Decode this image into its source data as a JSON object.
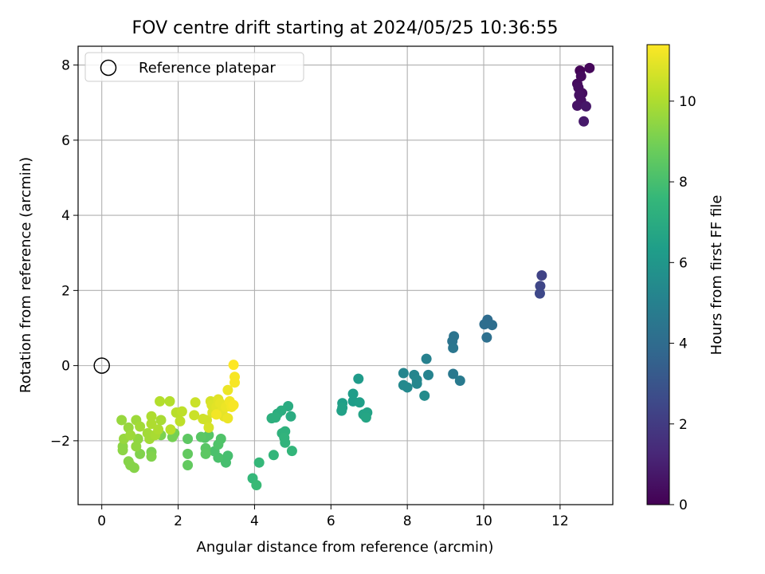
{
  "chart_data": {
    "type": "scatter",
    "title": "FOV centre drift starting at 2024/05/25 10:36:55",
    "xlabel": "Angular distance from reference (arcmin)",
    "ylabel": "Rotation from reference (arcmin)",
    "xlim": [
      -0.62,
      13.38
    ],
    "ylim": [
      -3.7,
      8.5
    ],
    "xticks": [
      0,
      2,
      4,
      6,
      8,
      10,
      12
    ],
    "yticks": [
      -2,
      0,
      2,
      4,
      6,
      8
    ],
    "grid": true,
    "legend": {
      "placement": "top-left",
      "entries": [
        "Reference platepar"
      ]
    },
    "reference_point": {
      "x": 0,
      "y": 0,
      "label": "Reference platepar"
    },
    "colorbar": {
      "label": "Hours from first FF file",
      "range": [
        0,
        11.4
      ],
      "ticks": [
        0,
        2,
        4,
        6,
        8,
        10
      ],
      "colormap": "viridis",
      "colormap_hex": [
        "#440154",
        "#482878",
        "#3e4989",
        "#31688e",
        "#26828e",
        "#1f9e89",
        "#35b779",
        "#6ece58",
        "#b5de2b",
        "#fde725"
      ]
    },
    "points": [
      {
        "x": 12.52,
        "y": 7.85,
        "c": 0.1
      },
      {
        "x": 12.77,
        "y": 7.92,
        "c": 0.2
      },
      {
        "x": 12.55,
        "y": 7.7,
        "c": 0.3
      },
      {
        "x": 12.45,
        "y": 7.5,
        "c": 0.3
      },
      {
        "x": 12.48,
        "y": 7.4,
        "c": 0.4
      },
      {
        "x": 12.58,
        "y": 7.25,
        "c": 0.4
      },
      {
        "x": 12.5,
        "y": 7.2,
        "c": 0.5
      },
      {
        "x": 12.55,
        "y": 7.05,
        "c": 0.5
      },
      {
        "x": 12.45,
        "y": 6.92,
        "c": 0.6
      },
      {
        "x": 12.68,
        "y": 6.9,
        "c": 0.7
      },
      {
        "x": 12.62,
        "y": 6.5,
        "c": 0.8
      },
      {
        "x": 11.52,
        "y": 2.4,
        "c": 2.3
      },
      {
        "x": 11.48,
        "y": 2.12,
        "c": 2.4
      },
      {
        "x": 11.47,
        "y": 1.92,
        "c": 2.5
      },
      {
        "x": 10.1,
        "y": 1.22,
        "c": 4.0
      },
      {
        "x": 10.02,
        "y": 1.1,
        "c": 4.1
      },
      {
        "x": 10.22,
        "y": 1.08,
        "c": 4.1
      },
      {
        "x": 10.08,
        "y": 0.75,
        "c": 4.2
      },
      {
        "x": 9.22,
        "y": 0.78,
        "c": 4.4
      },
      {
        "x": 9.18,
        "y": 0.65,
        "c": 4.4
      },
      {
        "x": 9.2,
        "y": 0.47,
        "c": 4.5
      },
      {
        "x": 9.2,
        "y": -0.22,
        "c": 4.6
      },
      {
        "x": 9.38,
        "y": -0.4,
        "c": 4.7
      },
      {
        "x": 8.5,
        "y": 0.18,
        "c": 5.0
      },
      {
        "x": 8.55,
        "y": -0.25,
        "c": 5.1
      },
      {
        "x": 7.9,
        "y": -0.2,
        "c": 5.2
      },
      {
        "x": 8.18,
        "y": -0.25,
        "c": 5.2
      },
      {
        "x": 8.25,
        "y": -0.38,
        "c": 5.3
      },
      {
        "x": 8.25,
        "y": -0.48,
        "c": 5.3
      },
      {
        "x": 7.9,
        "y": -0.52,
        "c": 5.4
      },
      {
        "x": 8.0,
        "y": -0.58,
        "c": 5.4
      },
      {
        "x": 8.45,
        "y": -0.8,
        "c": 5.5
      },
      {
        "x": 6.72,
        "y": -0.35,
        "c": 6.2
      },
      {
        "x": 6.58,
        "y": -0.75,
        "c": 6.3
      },
      {
        "x": 6.58,
        "y": -0.95,
        "c": 6.3
      },
      {
        "x": 6.75,
        "y": -0.98,
        "c": 6.4
      },
      {
        "x": 6.3,
        "y": -1.0,
        "c": 6.4
      },
      {
        "x": 6.3,
        "y": -1.12,
        "c": 6.5
      },
      {
        "x": 6.28,
        "y": -1.2,
        "c": 6.5
      },
      {
        "x": 6.95,
        "y": -1.25,
        "c": 6.6
      },
      {
        "x": 6.85,
        "y": -1.3,
        "c": 6.6
      },
      {
        "x": 6.92,
        "y": -1.38,
        "c": 6.7
      },
      {
        "x": 4.88,
        "y": -1.08,
        "c": 7.0
      },
      {
        "x": 4.95,
        "y": -1.35,
        "c": 7.0
      },
      {
        "x": 4.7,
        "y": -1.2,
        "c": 7.1
      },
      {
        "x": 4.6,
        "y": -1.28,
        "c": 7.1
      },
      {
        "x": 4.55,
        "y": -1.38,
        "c": 7.2
      },
      {
        "x": 4.45,
        "y": -1.4,
        "c": 7.2
      },
      {
        "x": 4.72,
        "y": -1.8,
        "c": 7.3
      },
      {
        "x": 4.8,
        "y": -1.75,
        "c": 7.3
      },
      {
        "x": 4.78,
        "y": -1.92,
        "c": 7.4
      },
      {
        "x": 4.8,
        "y": -2.05,
        "c": 7.4
      },
      {
        "x": 4.98,
        "y": -2.27,
        "c": 7.5
      },
      {
        "x": 4.5,
        "y": -2.38,
        "c": 7.5
      },
      {
        "x": 4.12,
        "y": -2.58,
        "c": 7.6
      },
      {
        "x": 3.95,
        "y": -3.0,
        "c": 7.6
      },
      {
        "x": 4.05,
        "y": -3.18,
        "c": 7.7
      },
      {
        "x": 3.3,
        "y": -2.4,
        "c": 8.0
      },
      {
        "x": 3.25,
        "y": -2.58,
        "c": 8.0
      },
      {
        "x": 3.05,
        "y": -2.45,
        "c": 8.1
      },
      {
        "x": 2.95,
        "y": -2.28,
        "c": 8.1
      },
      {
        "x": 3.05,
        "y": -2.1,
        "c": 8.2
      },
      {
        "x": 3.12,
        "y": -1.95,
        "c": 8.2
      },
      {
        "x": 2.8,
        "y": -1.85,
        "c": 8.3
      },
      {
        "x": 2.7,
        "y": -1.92,
        "c": 8.3
      },
      {
        "x": 2.6,
        "y": -1.9,
        "c": 8.4
      },
      {
        "x": 2.72,
        "y": -2.2,
        "c": 8.4
      },
      {
        "x": 2.72,
        "y": -2.35,
        "c": 8.5
      },
      {
        "x": 2.25,
        "y": -1.95,
        "c": 8.5
      },
      {
        "x": 2.25,
        "y": -2.35,
        "c": 8.6
      },
      {
        "x": 2.25,
        "y": -2.65,
        "c": 8.6
      },
      {
        "x": 1.9,
        "y": -1.8,
        "c": 9.0
      },
      {
        "x": 1.85,
        "y": -1.9,
        "c": 9.0
      },
      {
        "x": 1.55,
        "y": -1.85,
        "c": 9.1
      },
      {
        "x": 1.3,
        "y": -2.3,
        "c": 9.1
      },
      {
        "x": 1.3,
        "y": -2.42,
        "c": 9.2
      },
      {
        "x": 1.0,
        "y": -2.35,
        "c": 9.2
      },
      {
        "x": 0.85,
        "y": -2.72,
        "c": 9.3
      },
      {
        "x": 0.7,
        "y": -2.55,
        "c": 9.3
      },
      {
        "x": 0.75,
        "y": -2.65,
        "c": 9.3
      },
      {
        "x": 0.55,
        "y": -2.25,
        "c": 9.4
      },
      {
        "x": 0.55,
        "y": -2.15,
        "c": 9.4
      },
      {
        "x": 0.9,
        "y": -2.15,
        "c": 9.5
      },
      {
        "x": 0.95,
        "y": -1.95,
        "c": 9.5
      },
      {
        "x": 0.58,
        "y": -1.95,
        "c": 9.6
      },
      {
        "x": 0.52,
        "y": -1.45,
        "c": 9.6
      },
      {
        "x": 0.7,
        "y": -1.65,
        "c": 9.6
      },
      {
        "x": 0.75,
        "y": -1.85,
        "c": 9.7
      },
      {
        "x": 0.9,
        "y": -1.45,
        "c": 9.7
      },
      {
        "x": 1.0,
        "y": -1.62,
        "c": 9.8
      },
      {
        "x": 1.2,
        "y": -1.8,
        "c": 9.8
      },
      {
        "x": 1.25,
        "y": -1.95,
        "c": 9.8
      },
      {
        "x": 1.4,
        "y": -1.85,
        "c": 9.9
      },
      {
        "x": 1.55,
        "y": -1.45,
        "c": 9.9
      },
      {
        "x": 1.3,
        "y": -1.35,
        "c": 10.0
      },
      {
        "x": 1.3,
        "y": -1.55,
        "c": 10.0
      },
      {
        "x": 1.48,
        "y": -1.7,
        "c": 10.0
      },
      {
        "x": 1.52,
        "y": -0.95,
        "c": 10.1
      },
      {
        "x": 1.78,
        "y": -0.95,
        "c": 10.1
      },
      {
        "x": 1.8,
        "y": -1.7,
        "c": 10.2
      },
      {
        "x": 1.95,
        "y": -1.25,
        "c": 10.2
      },
      {
        "x": 2.05,
        "y": -1.48,
        "c": 10.3
      },
      {
        "x": 2.1,
        "y": -1.22,
        "c": 10.3
      },
      {
        "x": 2.45,
        "y": -0.98,
        "c": 10.5
      },
      {
        "x": 2.42,
        "y": -1.32,
        "c": 10.5
      },
      {
        "x": 2.65,
        "y": -1.42,
        "c": 10.6
      },
      {
        "x": 2.75,
        "y": -1.45,
        "c": 10.6
      },
      {
        "x": 2.8,
        "y": -1.65,
        "c": 10.7
      },
      {
        "x": 2.85,
        "y": -0.95,
        "c": 10.7
      },
      {
        "x": 2.88,
        "y": -1.05,
        "c": 10.8
      },
      {
        "x": 2.9,
        "y": -1.25,
        "c": 10.8
      },
      {
        "x": 3.0,
        "y": -1.1,
        "c": 10.9
      },
      {
        "x": 3.05,
        "y": -0.9,
        "c": 10.9
      },
      {
        "x": 3.1,
        "y": -1.0,
        "c": 11.0
      },
      {
        "x": 3.15,
        "y": -1.2,
        "c": 11.0
      },
      {
        "x": 3.2,
        "y": -1.35,
        "c": 11.0
      },
      {
        "x": 3.25,
        "y": -1.1,
        "c": 11.1
      },
      {
        "x": 3.3,
        "y": -1.4,
        "c": 11.1
      },
      {
        "x": 3.3,
        "y": -0.65,
        "c": 11.1
      },
      {
        "x": 3.35,
        "y": -0.95,
        "c": 11.2
      },
      {
        "x": 3.4,
        "y": -1.1,
        "c": 11.2
      },
      {
        "x": 3.0,
        "y": -1.3,
        "c": 11.2
      },
      {
        "x": 3.45,
        "y": -1.05,
        "c": 11.3
      },
      {
        "x": 3.48,
        "y": -0.3,
        "c": 11.3
      },
      {
        "x": 3.48,
        "y": -0.45,
        "c": 11.3
      },
      {
        "x": 3.45,
        "y": 0.02,
        "c": 11.4
      }
    ]
  }
}
